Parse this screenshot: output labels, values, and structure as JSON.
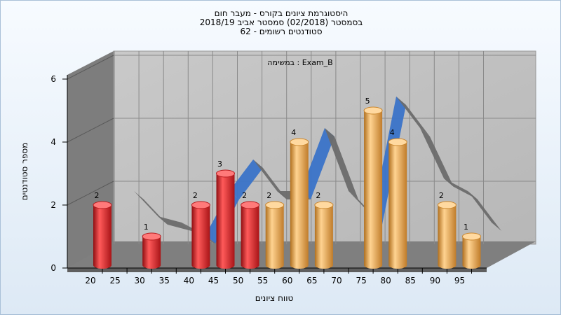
{
  "chart_data": {
    "type": "bar",
    "title_lines": [
      "היסטוגרמת ציונים בקורס - מעבר חום",
      "בסמסטר  (02/2018)  סמסטר אביב 2018/19",
      "סטודנטים רשומים - 62"
    ],
    "annotation": "במשימה : Exam_B",
    "xlabel": "טווח ציונים",
    "ylabel": "מספר סטודנטים",
    "x_ticks": [
      "20",
      "25",
      "30",
      "35",
      "40",
      "45",
      "50",
      "55",
      "60",
      "65",
      "70",
      "75",
      "80",
      "85",
      "90",
      "95"
    ],
    "y_ticks": [
      "0",
      "2",
      "4",
      "6"
    ],
    "ylim": [
      0,
      6
    ],
    "grid": true,
    "categories": [
      "20",
      "30",
      "40",
      "45",
      "50",
      "55",
      "60",
      "65",
      "75",
      "80",
      "90",
      "95"
    ],
    "values": [
      2,
      1,
      2,
      3,
      2,
      2,
      4,
      2,
      5,
      4,
      2,
      1
    ],
    "bar_colors": [
      "#e8262a",
      "#e8262a",
      "#e8262a",
      "#e8262a",
      "#e8262a",
      "#f0ad4e",
      "#f0ad4e",
      "#f0ad4e",
      "#f0ad4e",
      "#f0ad4e",
      "#f0ad4e",
      "#f0ad4e"
    ],
    "colors": {
      "red": "#e8262a",
      "orange": "#f0ad4e",
      "ribbon_blue": "#3a73c8",
      "ribbon_grey": "#6b6b6b",
      "wall": "#a8a8a8"
    }
  }
}
